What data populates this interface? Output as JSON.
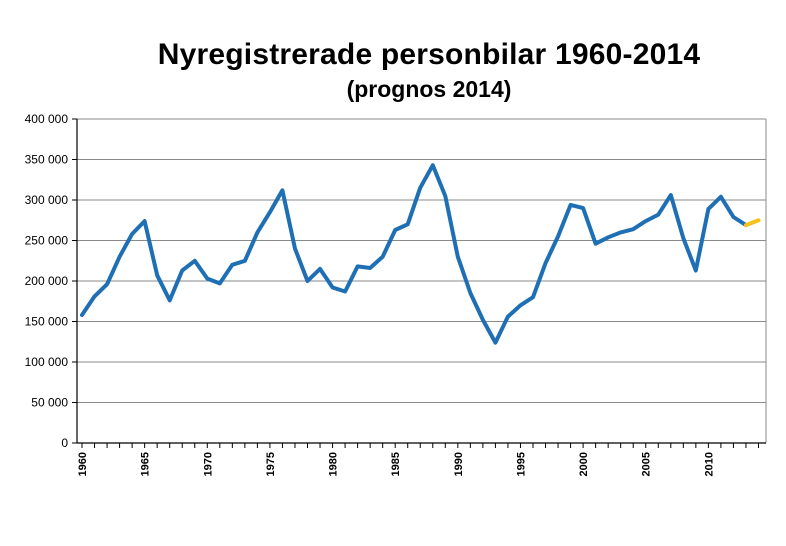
{
  "chart_data": {
    "type": "line",
    "title": "Nyregistrerade personbilar 1960-2014",
    "subtitle": "(prognos 2014)",
    "ylim": [
      0,
      400000
    ],
    "y_ticks": [
      "0",
      "50 000",
      "100 000",
      "150 000",
      "200 000",
      "250 000",
      "300 000",
      "350 000",
      "400 000"
    ],
    "x_ticks": [
      "1960",
      "1965",
      "1970",
      "1975",
      "1980",
      "1985",
      "1990",
      "1995",
      "2000",
      "2005",
      "2010"
    ],
    "grid": "horizontal",
    "legend": "none",
    "series": [
      {
        "color": "#1f6fb5",
        "x": [
          1960,
          1961,
          1962,
          1963,
          1964,
          1965,
          1966,
          1967,
          1968,
          1969,
          1970,
          1971,
          1972,
          1973,
          1974,
          1975,
          1976,
          1977,
          1978,
          1979,
          1980,
          1981,
          1982,
          1983,
          1984,
          1985,
          1986,
          1987,
          1988,
          1989,
          1990,
          1991,
          1992,
          1993,
          1994,
          1995,
          1996,
          1997,
          1998,
          1999,
          2000,
          2001,
          2002,
          2003,
          2004,
          2005,
          2006,
          2007,
          2008,
          2009,
          2010,
          2011,
          2012,
          2013
        ],
        "values": [
          158000,
          181000,
          196000,
          230000,
          258000,
          274000,
          207000,
          176000,
          213000,
          225000,
          203000,
          197000,
          220000,
          225000,
          260000,
          285000,
          312000,
          240000,
          200000,
          215000,
          192000,
          187000,
          218000,
          216000,
          230000,
          263000,
          270000,
          315000,
          343000,
          305000,
          230000,
          185000,
          152000,
          124000,
          156000,
          170000,
          180000,
          222000,
          255000,
          294000,
          290000,
          246000,
          254000,
          260000,
          264000,
          274000,
          282000,
          306000,
          253000,
          213000,
          289000,
          304000,
          279000,
          269000
        ]
      },
      {
        "color": "#f5c11a",
        "x": [
          2013,
          2014
        ],
        "values": [
          269000,
          275000
        ]
      }
    ]
  }
}
